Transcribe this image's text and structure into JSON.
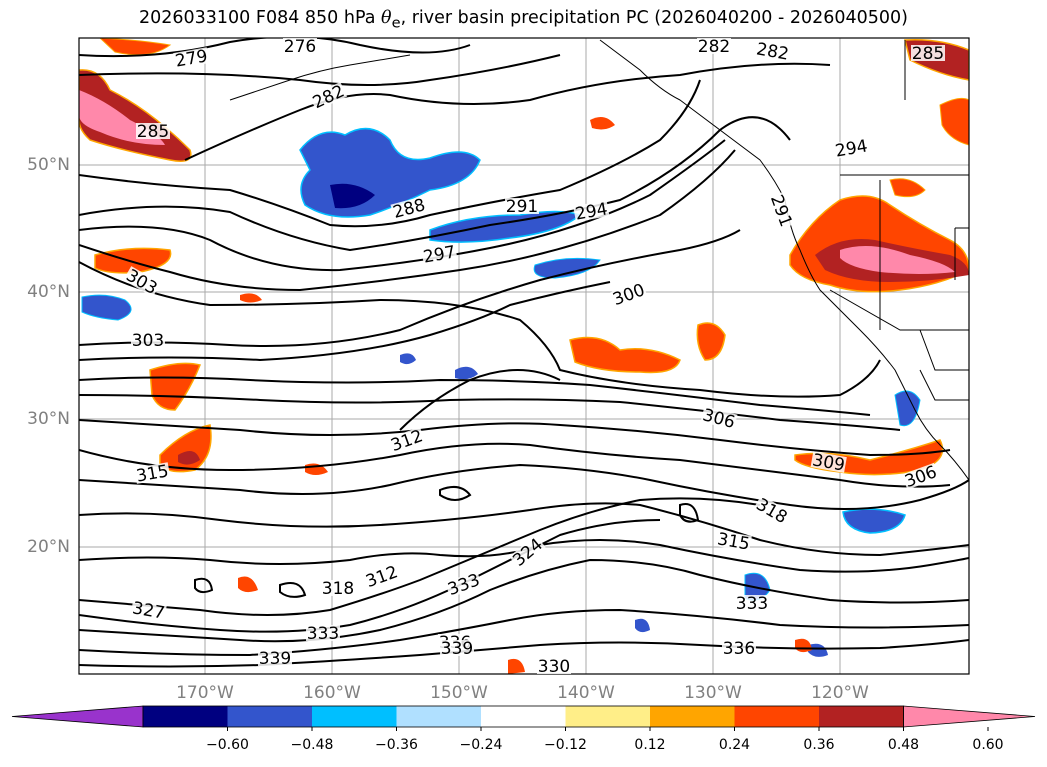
{
  "title": {
    "prefix": "2026033100 F084 850 hPa",
    "symbol": "θ",
    "symbol_sub": "e",
    "suffix": ", river basin precipitation PC (2026040200 - 2026040500)"
  },
  "map": {
    "region": "North Pacific / Western North America",
    "lat_labels": [
      "50°N",
      "40°N",
      "30°N",
      "20°N"
    ],
    "lon_labels": [
      "170°W",
      "160°W",
      "150°W",
      "140°W",
      "130°W",
      "120°W"
    ],
    "contour_labels": [
      "279",
      "276",
      "282",
      "282",
      "285",
      "285",
      "282",
      "288",
      "291",
      "294",
      "294",
      "291",
      "297",
      "300",
      "303",
      "303",
      "306",
      "306",
      "309",
      "312",
      "315",
      "318",
      "315",
      "318",
      "312",
      "324",
      "333",
      "327",
      "333",
      "339",
      "336",
      "339",
      "330",
      "336",
      "333"
    ]
  },
  "colorbar": {
    "colors": [
      "#9933cc",
      "#000080",
      "#3355cc",
      "#00bfff",
      "#b0e0ff",
      "#ffffff",
      "#ffee88",
      "#ffa500",
      "#ff4500",
      "#b22222",
      "#ff88aa"
    ],
    "tick_labels": [
      "−0.60",
      "−0.48",
      "−0.36",
      "−0.24",
      "−0.12",
      "0.12",
      "0.24",
      "0.36",
      "0.48",
      "0.60"
    ]
  }
}
